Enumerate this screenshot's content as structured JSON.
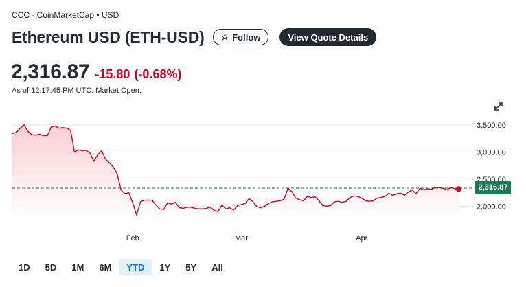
{
  "header": {
    "source": "CCC - CoinMarketCap • USD",
    "title": "Ethereum USD (ETH-USD)",
    "follow_label": "Follow",
    "quote_label": "View Quote Details"
  },
  "quote": {
    "price": "2,316.87",
    "change": "-15.80",
    "change_pct": "(-0.68%)",
    "as_of": "As of 12:17:45 PM UTC. Market Open."
  },
  "colors": {
    "line": "#d2001e",
    "fill_top": "#f9c9cc",
    "grid": "#e6e6e6",
    "ref_line": "#1a7a56",
    "tag": "#1a7a56",
    "active_range": "#0f69ff"
  },
  "icons": {
    "expand": "expand-arrows-icon",
    "star": "star-icon"
  },
  "chart_data": {
    "type": "area",
    "ylim": [
      1750,
      3650
    ],
    "yticks": [
      {
        "value": 3500,
        "label": "3,500.00"
      },
      {
        "value": 3000,
        "label": "3,000.00"
      },
      {
        "value": 2500,
        "label": "2,500.00"
      },
      {
        "value": 2000,
        "label": "2,000.00"
      }
    ],
    "xticks": [
      {
        "day": 31,
        "label": "Feb"
      },
      {
        "day": 59,
        "label": "Mar"
      },
      {
        "day": 90,
        "label": "Apr"
      }
    ],
    "reference_value": 2332.67,
    "current_label": "2,316.87",
    "series": [
      {
        "x": [
          0,
          1,
          2,
          3,
          4,
          5,
          6,
          7,
          8,
          9,
          10,
          11,
          12,
          13,
          14,
          15,
          16,
          17,
          18,
          19,
          20,
          21,
          22,
          23,
          24,
          25,
          26,
          27,
          28,
          29,
          30,
          31,
          32,
          33,
          34,
          35,
          36,
          37,
          38,
          39,
          40,
          41,
          42,
          43,
          44,
          45,
          46,
          47,
          48,
          49,
          50,
          51,
          52,
          53,
          54,
          55,
          56,
          57,
          58,
          59,
          60,
          61,
          62,
          63,
          64,
          65,
          66,
          67,
          68,
          69,
          70,
          71,
          72,
          73,
          74,
          75,
          76,
          77,
          78,
          79,
          80,
          81,
          82,
          83,
          84,
          85,
          86,
          87,
          88,
          89,
          90,
          91,
          92,
          93,
          94,
          95,
          96,
          97,
          98,
          99,
          100,
          101,
          102,
          103,
          104,
          105,
          106,
          107,
          108,
          109,
          110,
          111,
          112,
          113,
          114,
          115
        ],
        "y": [
          3340,
          3360,
          3440,
          3500,
          3380,
          3320,
          3310,
          3330,
          3300,
          3300,
          3460,
          3480,
          3440,
          3450,
          3440,
          3400,
          3000,
          3040,
          3020,
          3030,
          2980,
          2830,
          2950,
          3020,
          2870,
          2800,
          2720,
          2600,
          2300,
          2230,
          2250,
          2060,
          1840,
          2080,
          2110,
          2110,
          2110,
          2020,
          1950,
          1940,
          2060,
          2040,
          2070,
          1970,
          1960,
          1980,
          1980,
          1960,
          1950,
          1950,
          1960,
          1980,
          1920,
          1900,
          2020,
          1950,
          1970,
          1930,
          2010,
          2030,
          2050,
          2140,
          2080,
          1990,
          1970,
          2000,
          2050,
          2080,
          2090,
          2100,
          2130,
          2330,
          2270,
          2150,
          2120,
          2100,
          2180,
          2160,
          2170,
          2100,
          2010,
          2000,
          2010,
          2080,
          2090,
          2070,
          2090,
          2160,
          2190,
          2180,
          2150,
          2100,
          2090,
          2100,
          2150,
          2160,
          2180,
          2240,
          2200,
          2230,
          2240,
          2200,
          2260,
          2300,
          2230,
          2330,
          2300,
          2320,
          2310,
          2350,
          2340,
          2330,
          2300,
          2350,
          2320,
          2316.87
        ]
      }
    ]
  },
  "ranges": [
    {
      "label": "1D"
    },
    {
      "label": "5D"
    },
    {
      "label": "1M"
    },
    {
      "label": "6M"
    },
    {
      "label": "YTD",
      "active": true
    },
    {
      "label": "1Y"
    },
    {
      "label": "5Y"
    },
    {
      "label": "All"
    }
  ]
}
